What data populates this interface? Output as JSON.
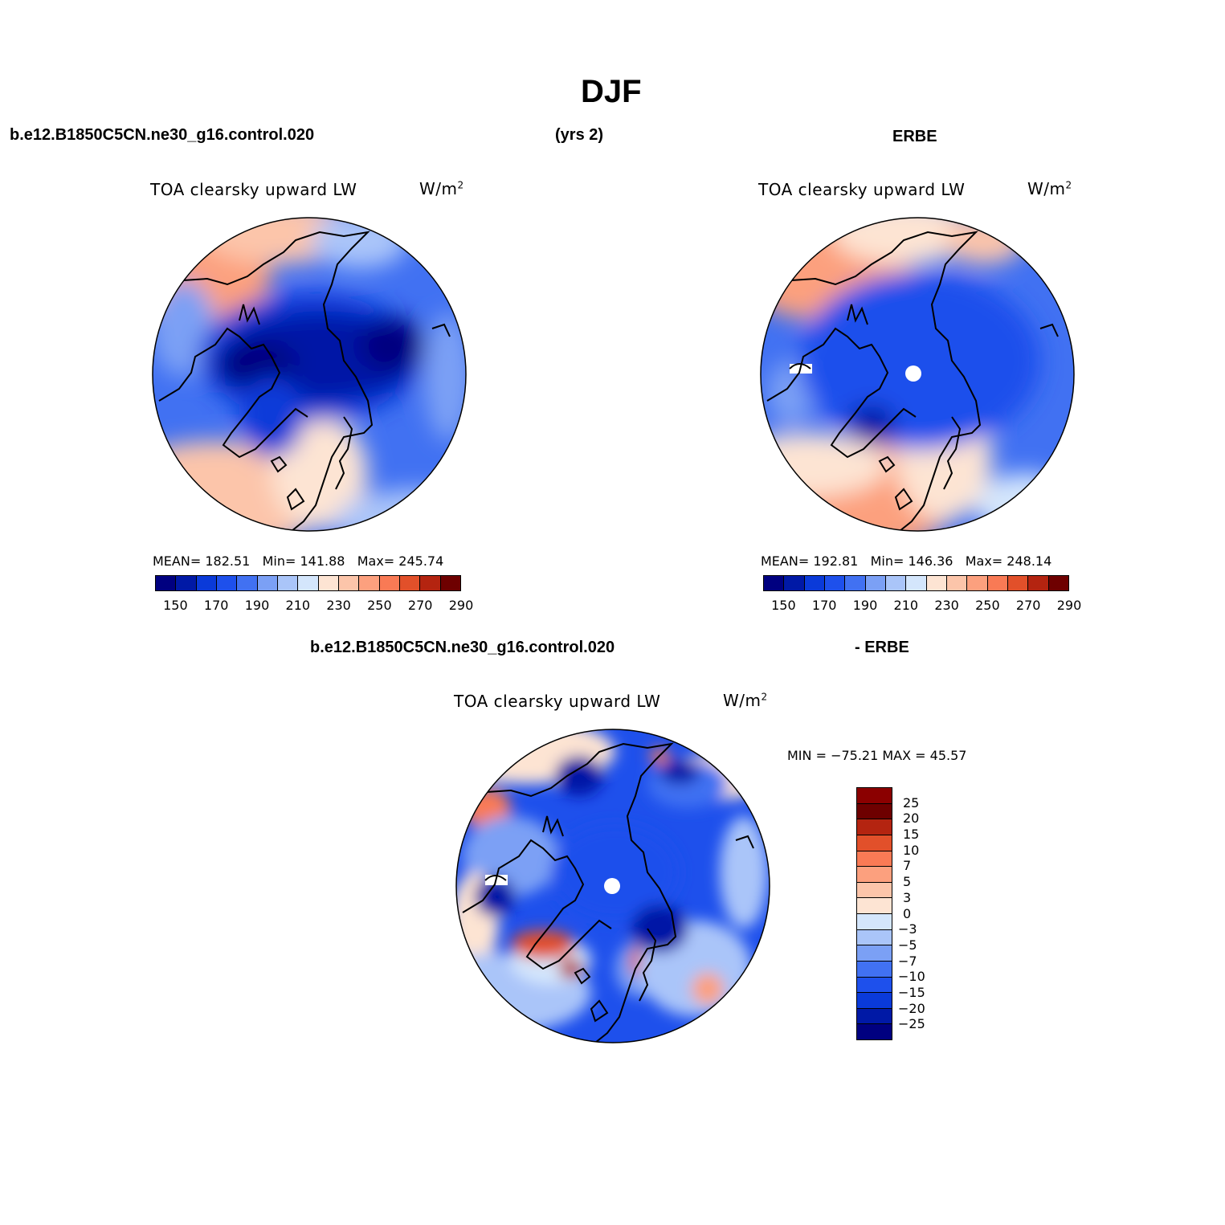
{
  "header": {
    "season": "DJF",
    "case_left": "b.e12.B1850C5CN.ne30_g16.control.020",
    "years": "(yrs 2)",
    "obs_right": "ERBE"
  },
  "diff_header": {
    "case": "b.e12.B1850C5CN.ne30_g16.control.020",
    "obs": "- ERBE"
  },
  "panels": [
    {
      "id": "model",
      "variable": "TOA clearsky upward LW",
      "units_base": "W/m",
      "units_exp": "2",
      "mean_label": "MEAN=",
      "mean": "182.51",
      "min_label": "Min=",
      "min": "141.88",
      "max_label": "Max=",
      "max": "245.74"
    },
    {
      "id": "obs",
      "variable": "TOA clearsky upward LW",
      "units_base": "W/m",
      "units_exp": "2",
      "mean_label": "MEAN=",
      "mean": "192.81",
      "min_label": "Min=",
      "min": "146.36",
      "max_label": "Max=",
      "max": "248.14"
    },
    {
      "id": "diff",
      "variable": "TOA clearsky upward LW",
      "units_base": "W/m",
      "units_exp": "2",
      "range_text": "MIN = −75.21 MAX =  45.57"
    }
  ],
  "colorbar_abs": {
    "colors": [
      "#000080",
      "#0019a6",
      "#0a3ad9",
      "#1e50ec",
      "#4171f2",
      "#7ba0f5",
      "#aac5f9",
      "#d4e6fc",
      "#fde4d3",
      "#fcc5aa",
      "#fca07e",
      "#f97a55",
      "#e2502a",
      "#b42410",
      "#6e0000"
    ],
    "labels": [
      "150",
      "170",
      "190",
      "210",
      "230",
      "250",
      "270",
      "290"
    ]
  },
  "colorbar_diff": {
    "colors": [
      "#000080",
      "#0019a6",
      "#0a3ad9",
      "#1e50ec",
      "#4171f2",
      "#7ba0f5",
      "#aac5f9",
      "#d4e6fc",
      "#fde4d3",
      "#fcc5aa",
      "#fca07e",
      "#f97a55",
      "#e2502a",
      "#b42410",
      "#6e0000",
      "#8b0000"
    ],
    "labels": [
      "25",
      "20",
      "15",
      "10",
      "7",
      "5",
      "3",
      "0",
      "−3",
      "−5",
      "−7",
      "−10",
      "−15",
      "−20",
      "−25"
    ]
  }
}
